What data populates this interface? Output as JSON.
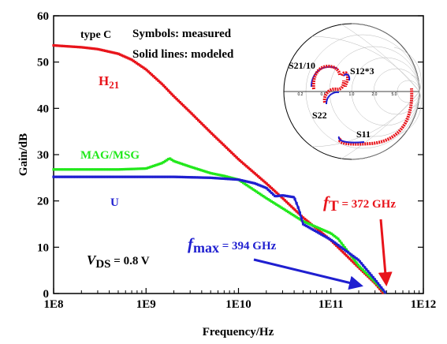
{
  "chart_data": {
    "type": "line",
    "xlabel": "Frequency/Hz",
    "ylabel": "Gain/dB",
    "x_scale": "log",
    "xlim": [
      100000000.0,
      1000000000000.0
    ],
    "ylim": [
      0,
      60
    ],
    "x_ticks": [
      "1E8",
      "1E9",
      "1E10",
      "1E11",
      "1E12"
    ],
    "y_ticks": [
      "0",
      "10",
      "20",
      "30",
      "40",
      "50",
      "60"
    ],
    "colors": {
      "H21": "#e8141b",
      "MAG": "#22e81c",
      "U": "#1f1fd0"
    },
    "series": [
      {
        "name": "H21",
        "color": "#e8141b",
        "x": [
          100000000.0,
          200000000.0,
          300000000.0,
          500000000.0,
          700000000.0,
          1000000000.0,
          1500000000.0,
          2000000000.0,
          3000000000.0,
          5000000000.0,
          7000000000.0,
          10000000000.0,
          20000000000.0,
          30000000000.0,
          50000000000.0,
          100000000000.0,
          200000000000.0,
          300000000000.0,
          372000000000.0
        ],
        "y": [
          53.6,
          53.2,
          52.8,
          51.8,
          50.5,
          48.4,
          45.2,
          42.6,
          39.2,
          34.8,
          32.0,
          29.0,
          23.8,
          20.6,
          16.4,
          11.5,
          5.6,
          2.2,
          0
        ]
      },
      {
        "name": "MAG/MSG",
        "color": "#22e81c",
        "x": [
          100000000.0,
          500000000.0,
          1000000000.0,
          1500000000.0,
          1800000000.0,
          2000000000.0,
          3000000000.0,
          5000000000.0,
          7000000000.0,
          10000000000.0,
          20000000000.0,
          30000000000.0,
          50000000000.0,
          100000000000.0,
          120000000000.0,
          200000000000.0,
          300000000000.0,
          394000000000.0
        ],
        "y": [
          26.8,
          26.8,
          27.0,
          28.2,
          29.2,
          28.6,
          27.4,
          26.0,
          25.4,
          24.6,
          20.6,
          18.4,
          15.6,
          13.0,
          11.8,
          6.0,
          2.5,
          0
        ]
      },
      {
        "name": "U",
        "color": "#1f1fd0",
        "x": [
          100000000.0,
          500000000.0,
          1000000000.0,
          2000000000.0,
          5000000000.0,
          10000000000.0,
          15000000000.0,
          20000000000.0,
          25000000000.0,
          30000000000.0,
          40000000000.0,
          45000000000.0,
          50000000000.0,
          100000000000.0,
          200000000000.0,
          300000000000.0,
          394000000000.0
        ],
        "y": [
          25.2,
          25.2,
          25.2,
          25.2,
          25.0,
          24.6,
          23.8,
          22.8,
          21.0,
          21.2,
          20.8,
          18.2,
          15.0,
          11.6,
          7.2,
          3.0,
          0
        ]
      }
    ],
    "annotations": {
      "type_label": "type C",
      "symbols_note": "Symbols: measured",
      "lines_note": "Solid lines: modeled",
      "h21_label": {
        "main": "H",
        "sub": "21"
      },
      "mag_label": "MAG/MSG",
      "u_label": "U",
      "vds_label": {
        "v": "V",
        "sub": "DS",
        "rest": " = 0.8 V"
      },
      "ft_label": {
        "f": "f",
        "sub": "T",
        "rest": " = 372 GHz"
      },
      "fmax_label": {
        "f": "f",
        "sub": "max",
        "rest": " = 394 GHz"
      }
    },
    "smith_inset": {
      "labels": {
        "s21": "S21/10",
        "s12": "S12*3",
        "s22": "S22",
        "s11": "S11"
      },
      "axis_ticks": [
        "0.2",
        "0.5",
        "1.0",
        "2.0",
        "5.0"
      ]
    }
  }
}
